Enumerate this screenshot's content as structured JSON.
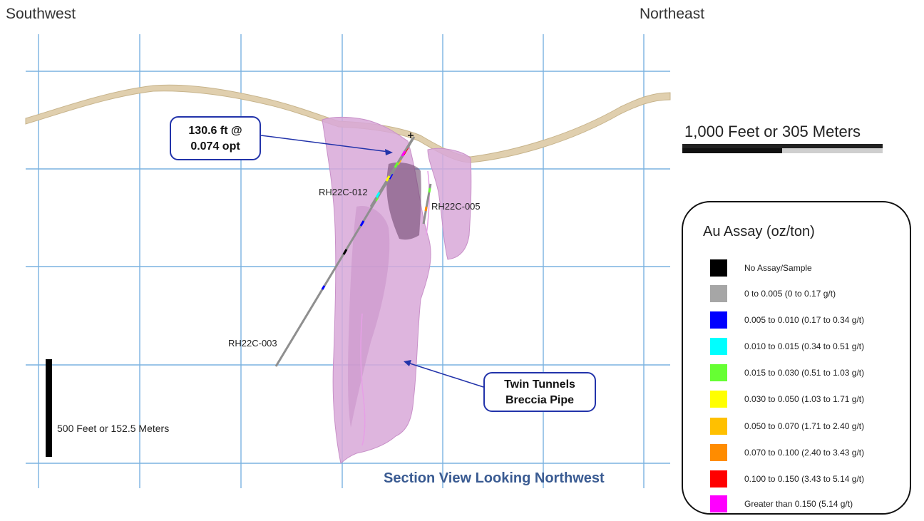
{
  "header": {
    "left_direction": "Southwest",
    "right_direction": "Northeast"
  },
  "callouts": {
    "intercept_line1": "130.6 ft @",
    "intercept_line2": "0.074 opt",
    "pipe_line1": "Twin Tunnels",
    "pipe_line2": "Breccia Pipe"
  },
  "drill_holes": [
    "RH22C-012",
    "RH22C-005",
    "RH22C-003"
  ],
  "scale_bars": {
    "horizontal_label": "1,000 Feet or 305 Meters",
    "vertical_label": "500 Feet or 152.5 Meters"
  },
  "view_title": "Section View Looking Northwest",
  "legend": {
    "title": "Au Assay (oz/ton)",
    "items": [
      {
        "label": "No Assay/Sample",
        "color": "#000000"
      },
      {
        "label": "0 to 0.005  (0 to 0.17 g/t)",
        "color": "#a6a6a6"
      },
      {
        "label": "0.005 to 0.010 (0.17 to 0.34 g/t)",
        "color": "#0000ff"
      },
      {
        "label": "0.010 to 0.015 (0.34 to 0.51 g/t)",
        "color": "#00ffff"
      },
      {
        "label": "0.015  to 0.030  (0.51 to 1.03 g/t)",
        "color": "#66ff33"
      },
      {
        "label": "0.030 to 0.050 (1.03 to 1.71 g/t)",
        "color": "#ffff00"
      },
      {
        "label": "0.050 to 0.070  (1.71 to 2.40 g/t)",
        "color": "#ffc000"
      },
      {
        "label": "0.070 to 0.100  (2.40 to 3.43 g/t)",
        "color": "#ff8c00"
      },
      {
        "label": "0.100 to 0.150  (3.43 to 5.14 g/t)",
        "color": "#ff0000"
      },
      {
        "label": "Greater than 0.150  (5.14 g/t)",
        "color": "#ff00ff"
      }
    ]
  },
  "colors": {
    "grid": "#7ab2e0",
    "pipe": "#d8a8d8",
    "topography": "#e0cfae",
    "callout_border": "#2233aa",
    "title_blue": "#3a5b92"
  }
}
